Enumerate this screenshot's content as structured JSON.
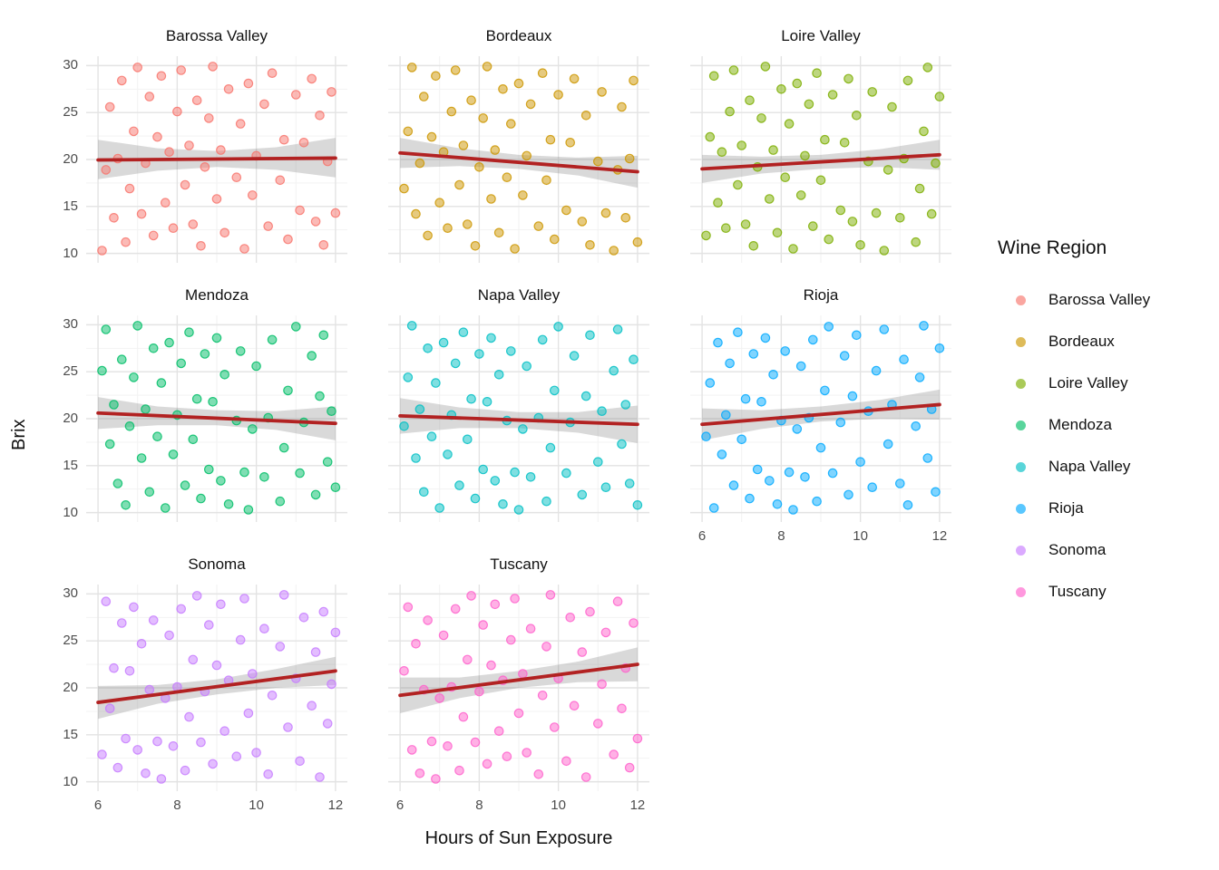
{
  "axis": {
    "x_title": "Hours of Sun Exposure",
    "y_title": "Brix",
    "x_ticks": [
      6,
      8,
      10,
      12
    ],
    "x_minor": [
      7,
      9,
      11
    ],
    "y_ticks": [
      30,
      25,
      20,
      15,
      10
    ],
    "y_minor": [
      12.5,
      17.5,
      22.5,
      27.5
    ],
    "xlim": [
      5.7,
      12.3
    ],
    "ylim": [
      9,
      31
    ]
  },
  "legend": {
    "title": "Wine Region",
    "items": [
      {
        "label": "Barossa Valley",
        "color": "#F8766D"
      },
      {
        "label": "Bordeaux",
        "color": "#CD9600"
      },
      {
        "label": "Loire Valley",
        "color": "#7CAE00"
      },
      {
        "label": "Mendoza",
        "color": "#00BE67"
      },
      {
        "label": "Napa Valley",
        "color": "#00BFC4"
      },
      {
        "label": "Rioja",
        "color": "#00A9FF"
      },
      {
        "label": "Sonoma",
        "color": "#C77CFF"
      },
      {
        "label": "Tuscany",
        "color": "#FF61CC"
      }
    ]
  },
  "style": {
    "trend_color": "#B22222",
    "band_color": "#808080",
    "band_opacity": 0.3,
    "grid_major": "#E3E3E3",
    "grid_minor": "#F1F1F1",
    "point_opacity": 0.5,
    "point_stroke_opacity": 0.85,
    "tick_label_color": "#4D4D4D",
    "text_color": "#111111",
    "background": "#FFFFFF"
  },
  "chart_data": {
    "type": "scatter",
    "facet_by": "Wine Region",
    "xlabel": "Hours of Sun Exposure",
    "ylabel": "Brix",
    "x_range": [
      6,
      12
    ],
    "y_range": [
      10,
      30
    ],
    "grid": true,
    "legend_position": "right",
    "smoother": "linear regression with confidence band",
    "x_shared": [
      6.1,
      6.2,
      6.3,
      6.4,
      6.5,
      6.6,
      6.7,
      6.8,
      6.9,
      7.0,
      7.1,
      7.2,
      7.3,
      7.4,
      7.5,
      7.6,
      7.7,
      7.8,
      7.9,
      8.0,
      8.1,
      8.2,
      8.3,
      8.4,
      8.5,
      8.6,
      8.7,
      8.8,
      8.9,
      9.0,
      9.1,
      9.2,
      9.3,
      9.5,
      9.6,
      9.7,
      9.8,
      9.9,
      10.0,
      10.2,
      10.3,
      10.4,
      10.6,
      10.7,
      10.8,
      11.0,
      11.1,
      11.2,
      11.4,
      11.5,
      11.6,
      11.7,
      11.8,
      11.9,
      12.0
    ],
    "panels": [
      {
        "name": "Barossa Valley",
        "color": "#F8766D",
        "trend": {
          "x": [
            6,
            12
          ],
          "y": [
            19.95,
            20.15
          ]
        },
        "band": {
          "x": [
            6,
            7.5,
            9,
            10.5,
            12
          ],
          "upper": [
            22.1,
            21.2,
            20.9,
            21.3,
            22.3
          ],
          "lower": [
            17.9,
            18.8,
            19.2,
            18.9,
            18.1
          ]
        },
        "points_y": [
          10.3,
          18.9,
          25.6,
          13.8,
          20.1,
          28.4,
          11.2,
          16.9,
          23.0,
          29.8,
          14.2,
          19.6,
          26.7,
          11.9,
          22.4,
          28.9,
          15.4,
          20.8,
          12.7,
          25.1,
          29.5,
          17.3,
          21.5,
          13.1,
          26.3,
          10.8,
          19.2,
          24.4,
          29.9,
          15.8,
          21.0,
          12.2,
          27.5,
          18.1,
          23.8,
          10.5,
          28.1,
          16.2,
          20.4,
          25.9,
          12.9,
          29.2,
          17.8,
          22.1,
          11.5,
          26.9,
          14.6,
          21.8,
          28.6,
          13.4,
          24.7,
          10.9,
          19.8,
          27.2,
          14.3
        ]
      },
      {
        "name": "Bordeaux",
        "color": "#CD9600",
        "trend": {
          "x": [
            6,
            12
          ],
          "y": [
            20.7,
            18.7
          ]
        },
        "band": {
          "x": [
            6,
            7.5,
            9,
            10.5,
            12
          ],
          "upper": [
            22.3,
            21.2,
            20.5,
            20.2,
            20.4
          ],
          "lower": [
            19.1,
            19.3,
            19.0,
            18.3,
            17.0
          ]
        },
        "points_y": [
          16.9,
          23.0,
          29.8,
          14.2,
          19.6,
          26.7,
          11.9,
          22.4,
          28.9,
          15.4,
          20.8,
          12.7,
          25.1,
          29.5,
          17.3,
          21.5,
          13.1,
          26.3,
          10.8,
          19.2,
          24.4,
          29.9,
          15.8,
          21.0,
          12.2,
          27.5,
          18.1,
          23.8,
          10.5,
          28.1,
          16.2,
          20.4,
          25.9,
          12.9,
          29.2,
          17.8,
          22.1,
          11.5,
          26.9,
          14.6,
          21.8,
          28.6,
          13.4,
          24.7,
          10.9,
          19.8,
          27.2,
          14.3,
          10.3,
          18.9,
          25.6,
          13.8,
          20.1,
          28.4,
          11.2
        ]
      },
      {
        "name": "Loire Valley",
        "color": "#7CAE00",
        "trend": {
          "x": [
            6,
            12
          ],
          "y": [
            19.0,
            20.5
          ]
        },
        "band": {
          "x": [
            6,
            7.5,
            9,
            10.5,
            12
          ],
          "upper": [
            20.5,
            20.3,
            20.5,
            21.1,
            22.1
          ],
          "lower": [
            17.5,
            18.5,
            19.0,
            19.2,
            18.9
          ]
        },
        "points_y": [
          11.9,
          22.4,
          28.9,
          15.4,
          20.8,
          12.7,
          25.1,
          29.5,
          17.3,
          21.5,
          13.1,
          26.3,
          10.8,
          19.2,
          24.4,
          29.9,
          15.8,
          21.0,
          12.2,
          27.5,
          18.1,
          23.8,
          10.5,
          28.1,
          16.2,
          20.4,
          25.9,
          12.9,
          29.2,
          17.8,
          22.1,
          11.5,
          26.9,
          14.6,
          21.8,
          28.6,
          13.4,
          24.7,
          10.9,
          19.8,
          27.2,
          14.3,
          10.3,
          18.9,
          25.6,
          13.8,
          20.1,
          28.4,
          11.2,
          16.9,
          23.0,
          29.8,
          14.2,
          19.6,
          26.7
        ]
      },
      {
        "name": "Mendoza",
        "color": "#00BE67",
        "trend": {
          "x": [
            6,
            12
          ],
          "y": [
            20.6,
            19.5
          ]
        },
        "band": {
          "x": [
            6,
            7.5,
            9,
            10.5,
            12
          ],
          "upper": [
            22.3,
            21.3,
            20.9,
            20.8,
            21.3
          ],
          "lower": [
            18.9,
            19.3,
            19.3,
            18.8,
            17.7
          ]
        },
        "points_y": [
          25.1,
          29.5,
          17.3,
          21.5,
          13.1,
          26.3,
          10.8,
          19.2,
          24.4,
          29.9,
          15.8,
          21.0,
          12.2,
          27.5,
          18.1,
          23.8,
          10.5,
          28.1,
          16.2,
          20.4,
          25.9,
          12.9,
          29.2,
          17.8,
          22.1,
          11.5,
          26.9,
          14.6,
          21.8,
          28.6,
          13.4,
          24.7,
          10.9,
          19.8,
          27.2,
          14.3,
          10.3,
          18.9,
          25.6,
          13.8,
          20.1,
          28.4,
          11.2,
          16.9,
          23.0,
          29.8,
          14.2,
          19.6,
          26.7,
          11.9,
          22.4,
          28.9,
          15.4,
          20.8,
          12.7
        ]
      },
      {
        "name": "Napa Valley",
        "color": "#00BFC4",
        "trend": {
          "x": [
            6,
            12
          ],
          "y": [
            20.3,
            19.4
          ]
        },
        "band": {
          "x": [
            6,
            7.5,
            9,
            10.5,
            12
          ],
          "upper": [
            22.2,
            21.2,
            20.7,
            20.7,
            21.4
          ],
          "lower": [
            18.4,
            19.0,
            19.0,
            18.5,
            17.4
          ]
        },
        "points_y": [
          19.2,
          24.4,
          29.9,
          15.8,
          21.0,
          12.2,
          27.5,
          18.1,
          23.8,
          10.5,
          28.1,
          16.2,
          20.4,
          25.9,
          12.9,
          29.2,
          17.8,
          22.1,
          11.5,
          26.9,
          14.6,
          21.8,
          28.6,
          13.4,
          24.7,
          10.9,
          19.8,
          27.2,
          14.3,
          10.3,
          18.9,
          25.6,
          13.8,
          20.1,
          28.4,
          11.2,
          16.9,
          23.0,
          29.8,
          14.2,
          19.6,
          26.7,
          11.9,
          22.4,
          28.9,
          15.4,
          20.8,
          12.7,
          25.1,
          29.5,
          17.3,
          21.5,
          13.1,
          26.3,
          10.8
        ]
      },
      {
        "name": "Rioja",
        "color": "#00A9FF",
        "trend": {
          "x": [
            6,
            12
          ],
          "y": [
            19.4,
            21.5
          ]
        },
        "band": {
          "x": [
            6,
            7.5,
            9,
            10.5,
            12
          ],
          "upper": [
            21.1,
            20.9,
            21.3,
            22.0,
            23.1
          ],
          "lower": [
            17.7,
            18.9,
            19.7,
            20.0,
            19.9
          ]
        },
        "points_y": [
          18.1,
          23.8,
          10.5,
          28.1,
          16.2,
          20.4,
          25.9,
          12.9,
          29.2,
          17.8,
          22.1,
          11.5,
          26.9,
          14.6,
          21.8,
          28.6,
          13.4,
          24.7,
          10.9,
          19.8,
          27.2,
          14.3,
          10.3,
          18.9,
          25.6,
          13.8,
          20.1,
          28.4,
          11.2,
          16.9,
          23.0,
          29.8,
          14.2,
          19.6,
          26.7,
          11.9,
          22.4,
          28.9,
          15.4,
          20.8,
          12.7,
          25.1,
          29.5,
          17.3,
          21.5,
          13.1,
          26.3,
          10.8,
          19.2,
          24.4,
          29.9,
          15.8,
          21.0,
          12.2,
          27.5
        ]
      },
      {
        "name": "Sonoma",
        "color": "#C77CFF",
        "trend": {
          "x": [
            6,
            12
          ],
          "y": [
            18.45,
            21.8
          ]
        },
        "band": {
          "x": [
            6,
            7.5,
            9,
            10.5,
            12
          ],
          "upper": [
            20.2,
            20.3,
            20.9,
            22.0,
            23.3
          ],
          "lower": [
            16.7,
            18.3,
            19.3,
            20.0,
            20.3
          ]
        },
        "points_y": [
          12.9,
          29.2,
          17.8,
          22.1,
          11.5,
          26.9,
          14.6,
          21.8,
          28.6,
          13.4,
          24.7,
          10.9,
          19.8,
          27.2,
          14.3,
          10.3,
          18.9,
          25.6,
          13.8,
          20.1,
          28.4,
          11.2,
          16.9,
          23.0,
          29.8,
          14.2,
          19.6,
          26.7,
          11.9,
          22.4,
          28.9,
          15.4,
          20.8,
          12.7,
          25.1,
          29.5,
          17.3,
          21.5,
          13.1,
          26.3,
          10.8,
          19.2,
          24.4,
          29.9,
          15.8,
          21.0,
          12.2,
          27.5,
          18.1,
          23.8,
          10.5,
          28.1,
          16.2,
          20.4,
          25.9
        ]
      },
      {
        "name": "Tuscany",
        "color": "#FF61CC",
        "trend": {
          "x": [
            6,
            12
          ],
          "y": [
            19.2,
            22.5
          ]
        },
        "band": {
          "x": [
            6,
            7.5,
            9,
            10.5,
            12
          ],
          "upper": [
            21.1,
            21.1,
            21.8,
            22.8,
            24.3
          ],
          "lower": [
            17.3,
            18.9,
            20.0,
            20.6,
            20.7
          ]
        },
        "points_y": [
          21.8,
          28.6,
          13.4,
          24.7,
          10.9,
          19.8,
          27.2,
          14.3,
          10.3,
          18.9,
          25.6,
          13.8,
          20.1,
          28.4,
          11.2,
          16.9,
          23.0,
          29.8,
          14.2,
          19.6,
          26.7,
          11.9,
          22.4,
          28.9,
          15.4,
          20.8,
          12.7,
          25.1,
          29.5,
          17.3,
          21.5,
          13.1,
          26.3,
          10.8,
          19.2,
          24.4,
          29.9,
          15.8,
          21.0,
          12.2,
          27.5,
          18.1,
          23.8,
          10.5,
          28.1,
          16.2,
          20.4,
          25.9,
          12.9,
          29.2,
          17.8,
          22.1,
          11.5,
          26.9,
          14.6
        ]
      }
    ]
  }
}
